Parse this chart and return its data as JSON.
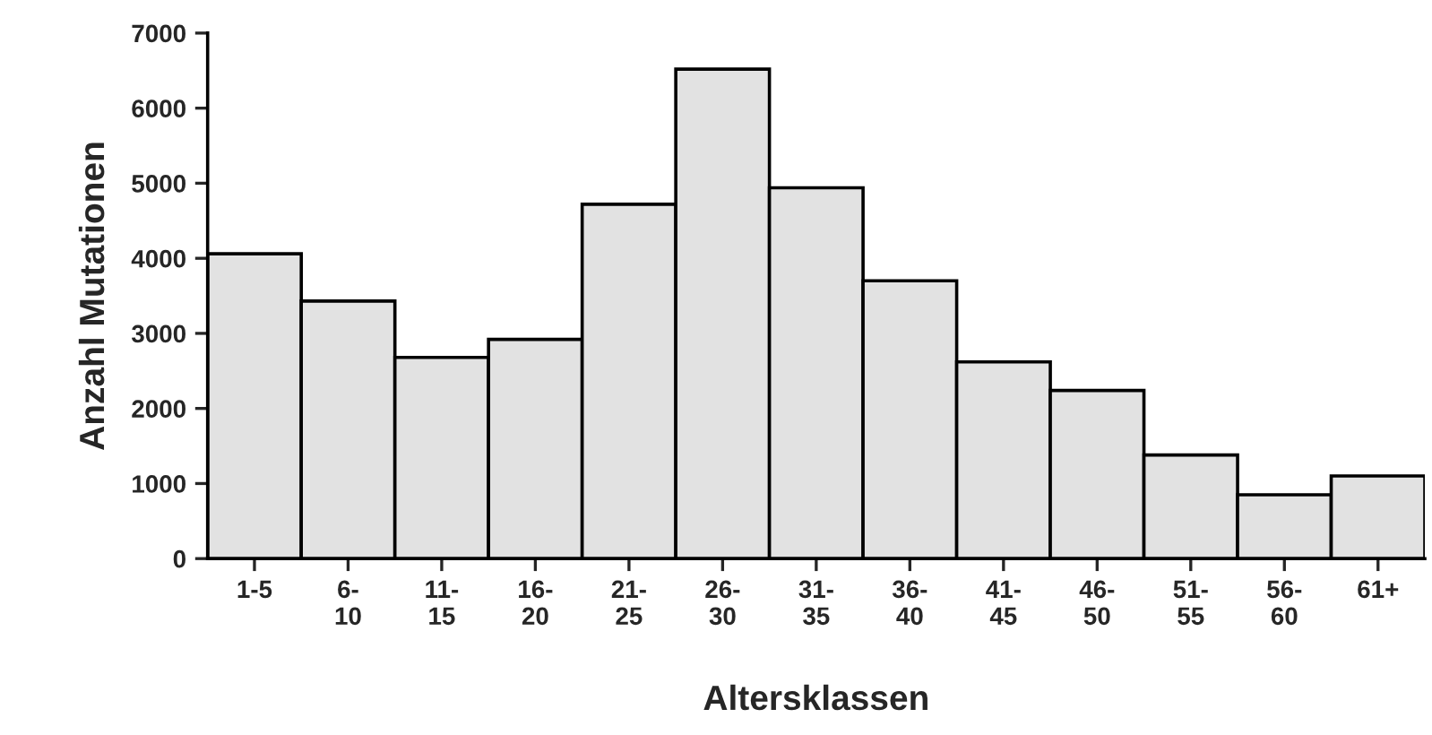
{
  "chart_data": {
    "type": "bar",
    "xlabel": "Altersklassen",
    "ylabel": "Anzahl Mutationen",
    "categories": [
      "1-5",
      "6-\n10",
      "11-\n15",
      "16-\n20",
      "21-\n25",
      "26-\n30",
      "31-\n35",
      "36-\n40",
      "41-\n45",
      "46-\n50",
      "51-\n55",
      "56-\n60",
      "61+"
    ],
    "values": [
      4060,
      3430,
      2680,
      2920,
      4720,
      6520,
      4940,
      3700,
      2620,
      2240,
      1380,
      850,
      1100
    ],
    "color": "#e2e2e2",
    "ylim": [
      0,
      7000
    ],
    "yticks": [
      0,
      1000,
      2000,
      3000,
      4000,
      5000,
      6000,
      7000
    ],
    "grid": false
  }
}
